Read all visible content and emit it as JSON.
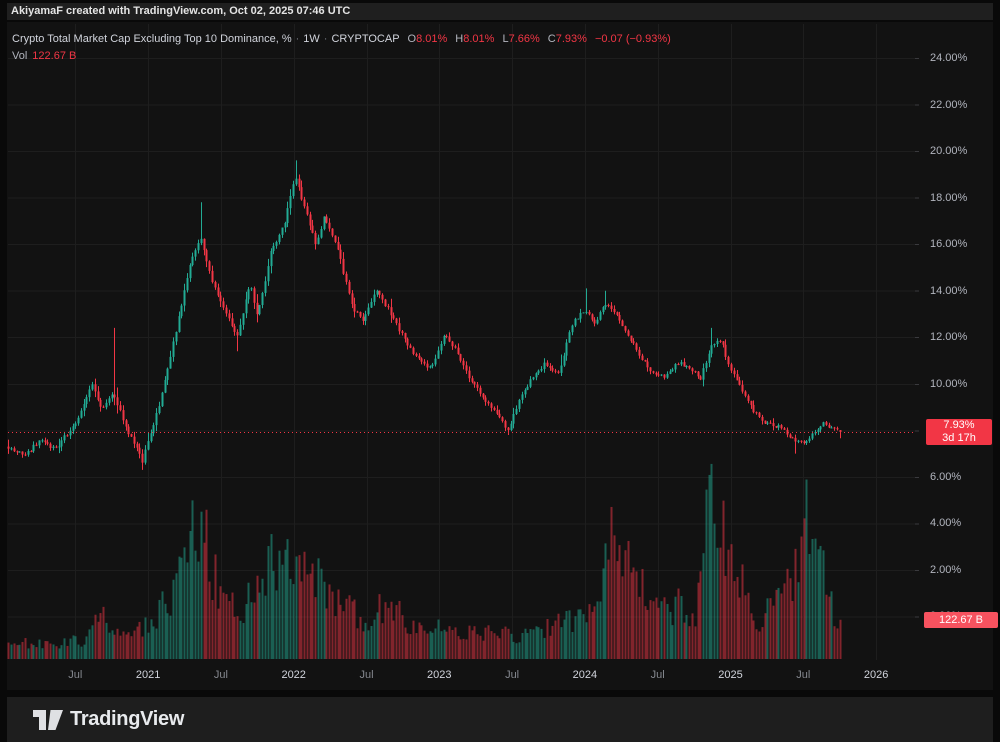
{
  "attribution_bar": {
    "text": "AkiyamaF created with TradingView.com, Oct 02, 2025 07:46 UTC"
  },
  "legend": {
    "title": "Crypto Total Market Cap Excluding Top 10 Dominance, %",
    "separator": "·",
    "interval": "1W",
    "exchange": "CRYPTOCAP",
    "ohlc": {
      "o_label": "O",
      "o_value": "8.01%",
      "h_label": "H",
      "h_value": "8.01%",
      "l_label": "L",
      "l_value": "7.66%",
      "c_label": "C",
      "c_value": "7.93%",
      "change": "−0.07 (−0.93%)"
    },
    "vol_label": "Vol",
    "vol_value": "122.67 B"
  },
  "price_scale": {
    "ticks": [
      {
        "label": "24.00%",
        "value": 24
      },
      {
        "label": "22.00%",
        "value": 22
      },
      {
        "label": "20.00%",
        "value": 20
      },
      {
        "label": "18.00%",
        "value": 18
      },
      {
        "label": "16.00%",
        "value": 16
      },
      {
        "label": "14.00%",
        "value": 14
      },
      {
        "label": "12.00%",
        "value": 12
      },
      {
        "label": "10.00%",
        "value": 10
      },
      {
        "label": "8.00%",
        "value": 8
      },
      {
        "label": "6.00%",
        "value": 6
      },
      {
        "label": "4.00%",
        "value": 4
      },
      {
        "label": "2.00%",
        "value": 2
      },
      {
        "label": "0.00%",
        "value": 0
      }
    ],
    "last_price_badge": {
      "price": "7.93%",
      "countdown": "3d 17h",
      "value": 7.93
    },
    "volume_badge": {
      "label": "122.67 B"
    }
  },
  "time_scale": {
    "ticks": [
      {
        "label": "Jul",
        "t": 2020.5,
        "type": "month"
      },
      {
        "label": "2021",
        "t": 2021.0,
        "type": "year"
      },
      {
        "label": "Jul",
        "t": 2021.5,
        "type": "month"
      },
      {
        "label": "2022",
        "t": 2022.0,
        "type": "year"
      },
      {
        "label": "Jul",
        "t": 2022.5,
        "type": "month"
      },
      {
        "label": "2023",
        "t": 2023.0,
        "type": "year"
      },
      {
        "label": "Jul",
        "t": 2023.5,
        "type": "month"
      },
      {
        "label": "2024",
        "t": 2024.0,
        "type": "year"
      },
      {
        "label": "Jul",
        "t": 2024.5,
        "type": "month"
      },
      {
        "label": "2025",
        "t": 2025.0,
        "type": "year"
      },
      {
        "label": "Jul",
        "t": 2025.5,
        "type": "month"
      },
      {
        "label": "2026",
        "t": 2026.0,
        "type": "year"
      }
    ]
  },
  "footer": {
    "brand": "TradingView"
  },
  "colors": {
    "up": "#22ab94",
    "down": "#f23645",
    "vol_up": "#22ab94",
    "vol_down": "#f23645",
    "grid": "#1e1e1e",
    "tick_dash": "#3a3a3e",
    "dotted_line": "#f23645",
    "price_badge_bg": "#f23645",
    "vol_badge_bg": "#f7525f"
  },
  "chart_data": {
    "type": "candlestick",
    "title": "Crypto Total Market Cap Excluding Top 10 Dominance, %",
    "symbol": "CRYPTOCAP",
    "interval": "1W",
    "unit": "%",
    "ylim": [
      0,
      25.5
    ],
    "grid_step": 2,
    "x_range_decimal_years": [
      2020.04,
      2025.745
    ],
    "last_bar": {
      "open": 8.01,
      "high": 8.01,
      "low": 7.66,
      "close": 7.93,
      "volume_b": 122.67,
      "change": -0.07,
      "change_pct": -0.93
    },
    "close_path": [
      [
        2020.04,
        7.3
      ],
      [
        2020.15,
        6.9
      ],
      [
        2020.26,
        7.6
      ],
      [
        2020.36,
        7.2
      ],
      [
        2020.5,
        8.3
      ],
      [
        2020.61,
        10.0
      ],
      [
        2020.68,
        8.9
      ],
      [
        2020.76,
        9.6
      ],
      [
        2020.84,
        8.2
      ],
      [
        2020.96,
        6.7
      ],
      [
        2021.08,
        9.2
      ],
      [
        2021.18,
        12.0
      ],
      [
        2021.29,
        15.2
      ],
      [
        2021.36,
        16.3
      ],
      [
        2021.43,
        14.6
      ],
      [
        2021.51,
        13.3
      ],
      [
        2021.61,
        12.1
      ],
      [
        2021.7,
        14.3
      ],
      [
        2021.75,
        12.9
      ],
      [
        2021.84,
        15.6
      ],
      [
        2021.93,
        16.8
      ],
      [
        2022.01,
        18.9
      ],
      [
        2022.08,
        17.4
      ],
      [
        2022.15,
        16.0
      ],
      [
        2022.21,
        17.2
      ],
      [
        2022.3,
        15.8
      ],
      [
        2022.4,
        13.3
      ],
      [
        2022.48,
        12.7
      ],
      [
        2022.56,
        14.0
      ],
      [
        2022.66,
        13.1
      ],
      [
        2022.76,
        11.9
      ],
      [
        2022.87,
        10.9
      ],
      [
        2022.95,
        10.7
      ],
      [
        2023.04,
        12.2
      ],
      [
        2023.13,
        11.2
      ],
      [
        2023.21,
        10.2
      ],
      [
        2023.31,
        9.3
      ],
      [
        2023.42,
        8.5
      ],
      [
        2023.47,
        8.0
      ],
      [
        2023.55,
        9.3
      ],
      [
        2023.64,
        10.3
      ],
      [
        2023.73,
        10.9
      ],
      [
        2023.82,
        10.4
      ],
      [
        2023.9,
        12.5
      ],
      [
        2024.0,
        13.2
      ],
      [
        2024.06,
        12.6
      ],
      [
        2024.14,
        13.4
      ],
      [
        2024.21,
        13.0
      ],
      [
        2024.3,
        12.0
      ],
      [
        2024.38,
        11.2
      ],
      [
        2024.46,
        10.5
      ],
      [
        2024.55,
        10.3
      ],
      [
        2024.64,
        10.9
      ],
      [
        2024.72,
        10.7
      ],
      [
        2024.79,
        10.2
      ],
      [
        2024.87,
        11.7
      ],
      [
        2024.93,
        11.9
      ],
      [
        2025.0,
        10.6
      ],
      [
        2025.08,
        9.7
      ],
      [
        2025.15,
        8.9
      ],
      [
        2025.22,
        8.4
      ],
      [
        2025.31,
        8.2
      ],
      [
        2025.37,
        8.0
      ],
      [
        2025.44,
        7.5
      ],
      [
        2025.51,
        7.4
      ],
      [
        2025.58,
        8.0
      ],
      [
        2025.64,
        8.3
      ],
      [
        2025.7,
        8.1
      ],
      [
        2025.745,
        7.93
      ]
    ],
    "wick_extremes": [
      {
        "t": 2020.76,
        "type": "high",
        "v": 12.4
      },
      {
        "t": 2020.96,
        "type": "low",
        "v": 6.3
      },
      {
        "t": 2021.36,
        "type": "high",
        "v": 17.8
      },
      {
        "t": 2021.61,
        "type": "low",
        "v": 11.4
      },
      {
        "t": 2022.01,
        "type": "high",
        "v": 19.6
      },
      {
        "t": 2023.47,
        "type": "low",
        "v": 7.8
      },
      {
        "t": 2024.0,
        "type": "high",
        "v": 14.1
      },
      {
        "t": 2024.14,
        "type": "high",
        "v": 14.0
      },
      {
        "t": 2024.87,
        "type": "high",
        "v": 12.4
      },
      {
        "t": 2025.44,
        "type": "low",
        "v": 7.0
      }
    ],
    "volume_path_b": [
      [
        2020.04,
        55
      ],
      [
        2020.3,
        45
      ],
      [
        2020.55,
        60
      ],
      [
        2020.67,
        140
      ],
      [
        2020.8,
        70
      ],
      [
        2020.95,
        95
      ],
      [
        2021.1,
        160
      ],
      [
        2021.25,
        280
      ],
      [
        2021.32,
        465
      ],
      [
        2021.38,
        380
      ],
      [
        2021.5,
        180
      ],
      [
        2021.62,
        150
      ],
      [
        2021.7,
        210
      ],
      [
        2021.84,
        320
      ],
      [
        2021.95,
        290
      ],
      [
        2022.05,
        260
      ],
      [
        2022.2,
        230
      ],
      [
        2022.35,
        160
      ],
      [
        2022.5,
        115
      ],
      [
        2022.66,
        185
      ],
      [
        2022.8,
        110
      ],
      [
        2022.95,
        90
      ],
      [
        2023.1,
        100
      ],
      [
        2023.25,
        80
      ],
      [
        2023.4,
        85
      ],
      [
        2023.55,
        70
      ],
      [
        2023.75,
        95
      ],
      [
        2023.9,
        120
      ],
      [
        2024.0,
        140
      ],
      [
        2024.1,
        170
      ],
      [
        2024.16,
        420
      ],
      [
        2024.25,
        350
      ],
      [
        2024.33,
        270
      ],
      [
        2024.45,
        190
      ],
      [
        2024.55,
        145
      ],
      [
        2024.65,
        175
      ],
      [
        2024.75,
        100
      ],
      [
        2024.83,
        400
      ],
      [
        2024.9,
        495
      ],
      [
        2024.97,
        380
      ],
      [
        2025.03,
        310
      ],
      [
        2025.12,
        160
      ],
      [
        2025.2,
        110
      ],
      [
        2025.3,
        180
      ],
      [
        2025.38,
        240
      ],
      [
        2025.45,
        280
      ],
      [
        2025.5,
        480
      ],
      [
        2025.53,
        400
      ],
      [
        2025.58,
        340
      ],
      [
        2025.63,
        260
      ],
      [
        2025.68,
        190
      ],
      [
        2025.745,
        122.67
      ]
    ],
    "price_line": {
      "value": 7.93,
      "style": "dotted"
    },
    "legend_position": "top-left",
    "grid": true
  }
}
